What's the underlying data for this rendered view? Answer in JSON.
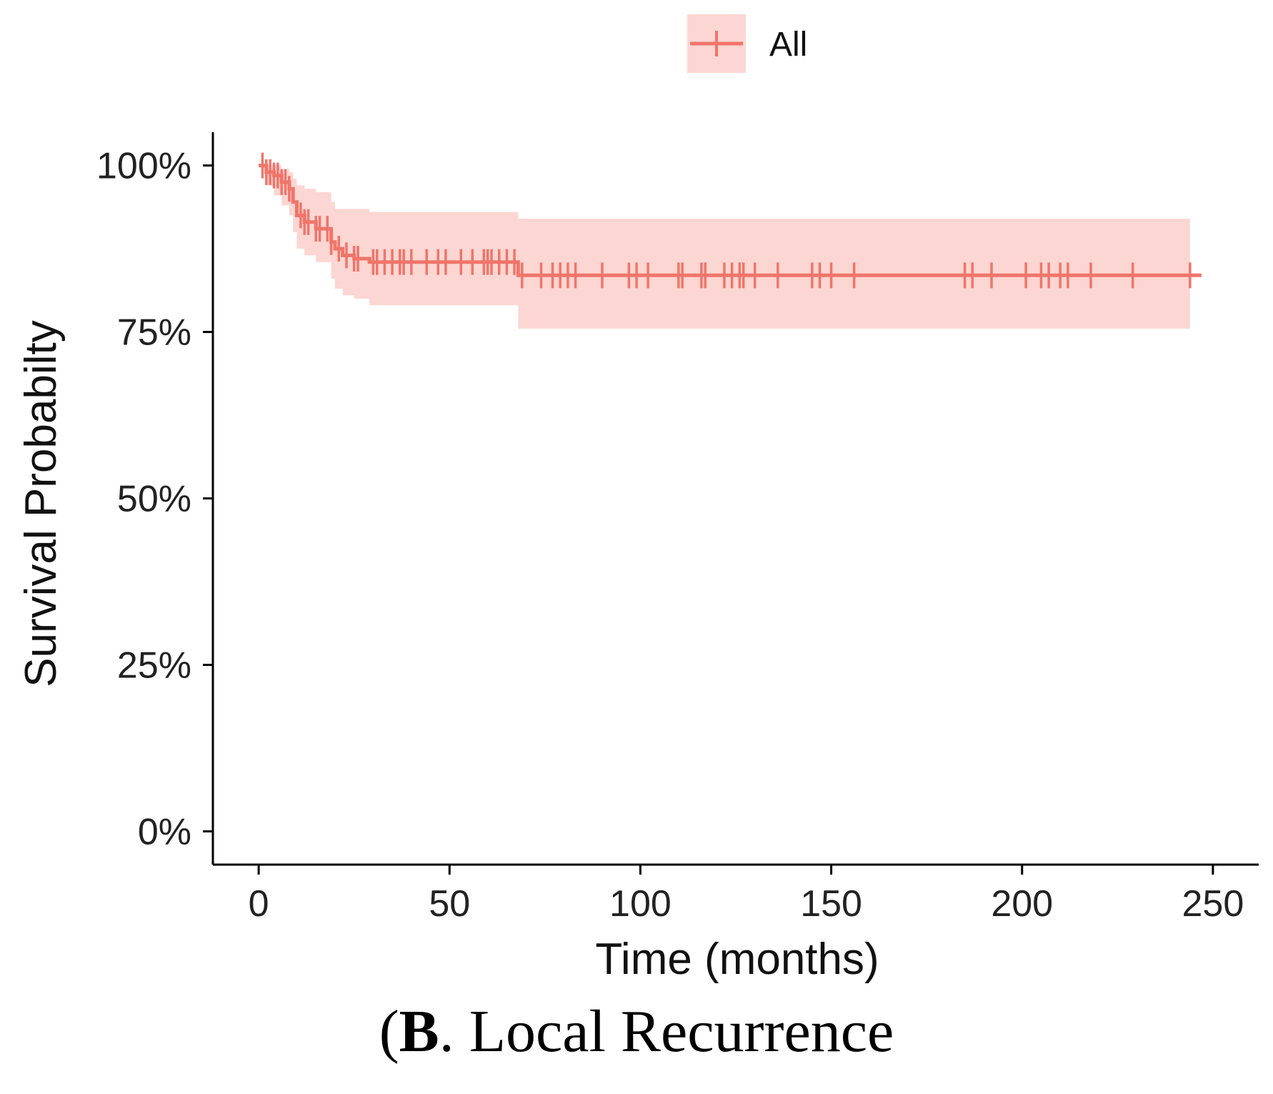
{
  "chart_data": {
    "type": "line",
    "subtype": "kaplan-meier",
    "xlabel": "Time (months)",
    "ylabel": "Survival Probabilty",
    "xlim": [
      -12,
      262
    ],
    "ylim": [
      -0.05,
      1.05
    ],
    "x_ticks": [
      0,
      50,
      100,
      150,
      200,
      250
    ],
    "x_tick_labels": [
      "0",
      "50",
      "100",
      "150",
      "200",
      "250"
    ],
    "y_ticks": [
      0,
      0.25,
      0.5,
      0.75,
      1.0
    ],
    "y_tick_labels": [
      "0%",
      "25%",
      "50%",
      "75%",
      "100%"
    ],
    "grid": false,
    "legend_position": "top",
    "colors": {
      "line": "#f0756a",
      "band": "#fcd6d2",
      "axis": "#000000"
    },
    "series": [
      {
        "name": "All",
        "steps": [
          {
            "x": 0,
            "y": 1.0,
            "lower": 1.0,
            "upper": 1.0
          },
          {
            "x": 2,
            "y": 0.99,
            "lower": 0.97,
            "upper": 1.0
          },
          {
            "x": 4,
            "y": 0.985,
            "lower": 0.955,
            "upper": 1.0
          },
          {
            "x": 6,
            "y": 0.975,
            "lower": 0.94,
            "upper": 0.995
          },
          {
            "x": 8,
            "y": 0.965,
            "lower": 0.925,
            "upper": 0.99
          },
          {
            "x": 9,
            "y": 0.945,
            "lower": 0.9,
            "upper": 0.98
          },
          {
            "x": 10,
            "y": 0.925,
            "lower": 0.875,
            "upper": 0.97
          },
          {
            "x": 12,
            "y": 0.915,
            "lower": 0.865,
            "upper": 0.965
          },
          {
            "x": 15,
            "y": 0.905,
            "lower": 0.855,
            "upper": 0.96
          },
          {
            "x": 19,
            "y": 0.885,
            "lower": 0.83,
            "upper": 0.945
          },
          {
            "x": 20,
            "y": 0.875,
            "lower": 0.815,
            "upper": 0.935
          },
          {
            "x": 22,
            "y": 0.865,
            "lower": 0.805,
            "upper": 0.935
          },
          {
            "x": 25,
            "y": 0.86,
            "lower": 0.8,
            "upper": 0.935
          },
          {
            "x": 29,
            "y": 0.855,
            "lower": 0.79,
            "upper": 0.93
          },
          {
            "x": 68,
            "y": 0.835,
            "lower": 0.755,
            "upper": 0.92
          },
          {
            "x": 244,
            "y": 0.835,
            "lower": 0.755,
            "upper": 0.92
          }
        ],
        "end_x": 247,
        "censored": [
          1,
          2,
          3,
          4,
          5,
          6,
          7,
          8,
          11,
          12,
          13,
          15,
          16,
          18,
          19,
          21,
          23,
          25,
          26,
          30,
          31,
          33,
          35,
          37,
          38,
          40,
          44,
          47,
          49,
          53,
          56,
          59,
          60,
          61,
          63,
          65,
          67,
          69,
          74,
          77,
          79,
          81,
          83,
          90,
          97,
          99,
          102,
          110,
          111,
          116,
          117,
          122,
          124,
          126,
          127,
          130,
          136,
          145,
          147,
          150,
          156,
          185,
          187,
          192,
          201,
          205,
          207,
          210,
          212,
          218,
          229,
          244
        ]
      }
    ]
  },
  "caption": {
    "label": "B",
    "text": ". Local Recurrence"
  }
}
